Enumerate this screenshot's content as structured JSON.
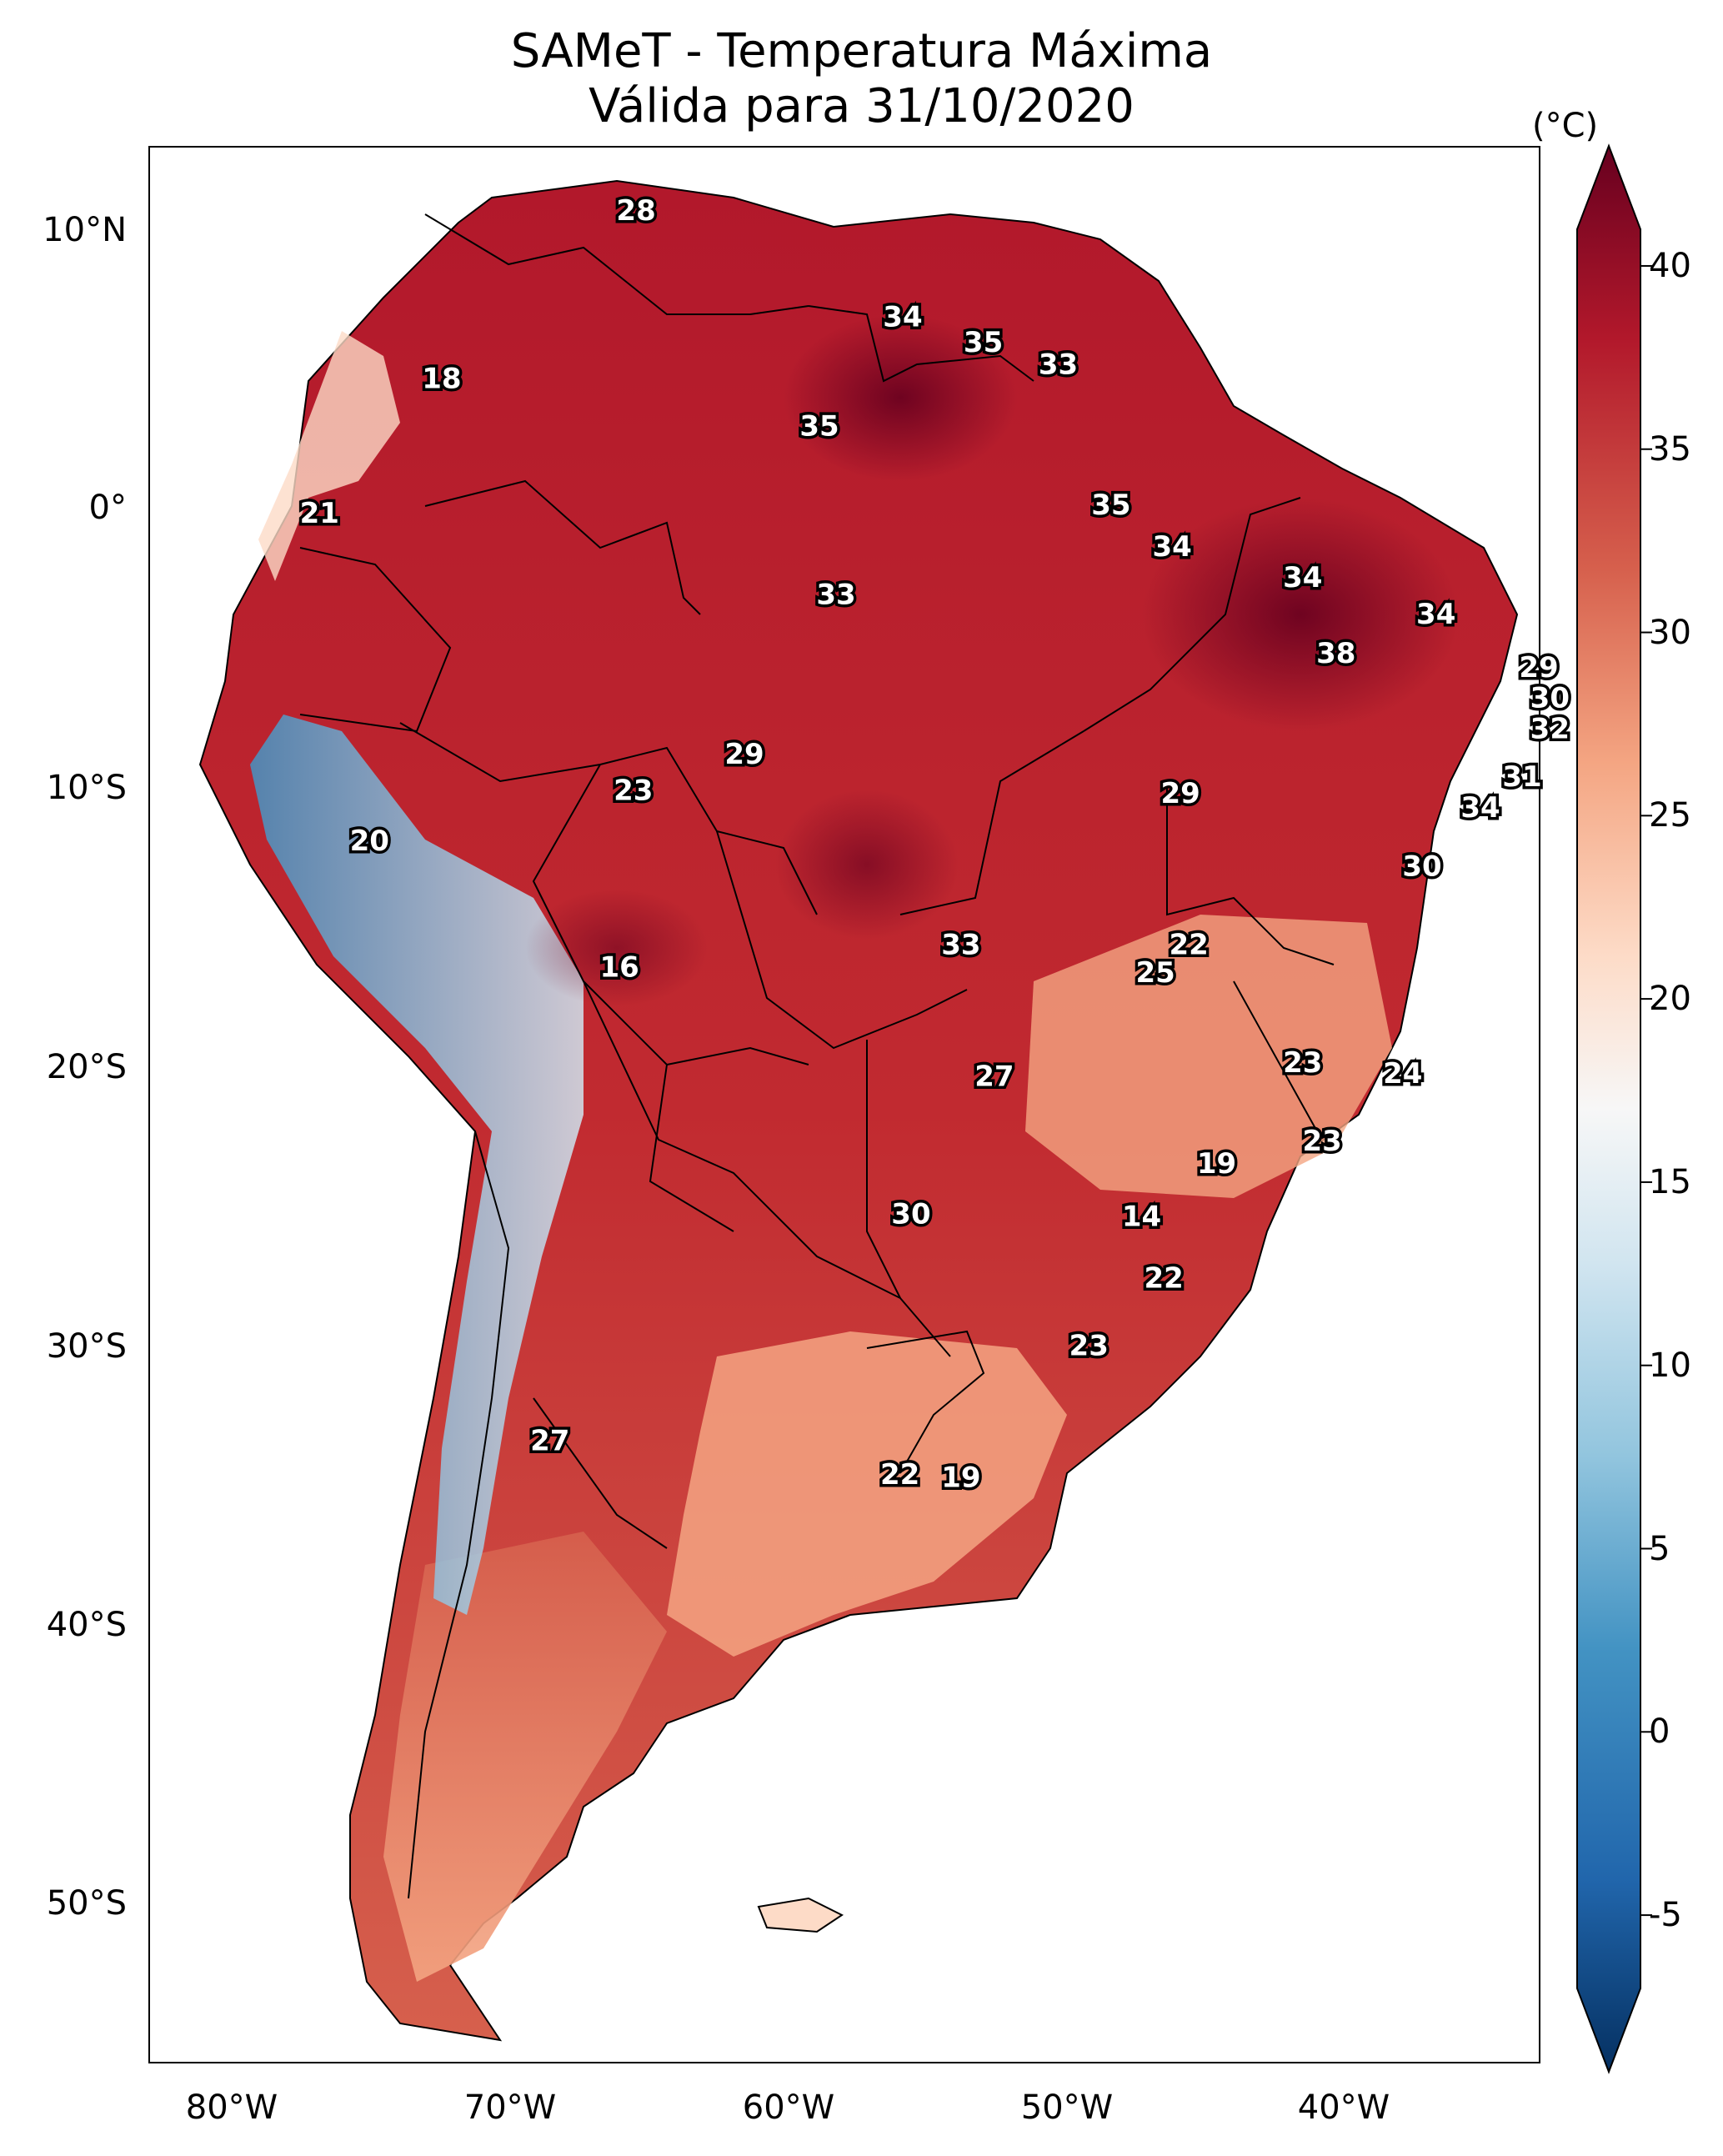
{
  "title": {
    "line1": "SAMeT - Temperatura Máxima",
    "line2": "Válida para 31/10/2020"
  },
  "axes": {
    "lat_labels": [
      "10°N",
      "0°",
      "10°S",
      "20°S",
      "30°S",
      "40°S",
      "50°S"
    ],
    "lon_labels": [
      "80°W",
      "70°W",
      "60°W",
      "50°W",
      "40°W"
    ]
  },
  "colorbar": {
    "unit": "(°C)",
    "ticks": [
      "40",
      "35",
      "30",
      "25",
      "20",
      "15",
      "10",
      "5",
      "0",
      "-5"
    ],
    "min": -7,
    "max": 41,
    "colors": [
      "#053061",
      "#2166ac",
      "#4393c3",
      "#92c5de",
      "#d1e5f0",
      "#f7f7f7",
      "#fddbc7",
      "#f4a582",
      "#d6604d",
      "#b2182b",
      "#67001f"
    ]
  },
  "map_values": [
    {
      "name": "label-1",
      "text": "28",
      "lon": -67.5,
      "lat": 10.5
    },
    {
      "name": "label-2",
      "text": "34",
      "lon": -57.9,
      "lat": 6.7
    },
    {
      "name": "label-3",
      "text": "35",
      "lon": -55.0,
      "lat": 5.8
    },
    {
      "name": "label-4",
      "text": "33",
      "lon": -52.3,
      "lat": 5.0
    },
    {
      "name": "label-5",
      "text": "18",
      "lon": -74.5,
      "lat": 4.5
    },
    {
      "name": "label-6",
      "text": "35",
      "lon": -60.9,
      "lat": 2.8
    },
    {
      "name": "label-7",
      "text": "21",
      "lon": -78.9,
      "lat": -0.3
    },
    {
      "name": "label-8",
      "text": "35",
      "lon": -50.4,
      "lat": 0.0
    },
    {
      "name": "label-9",
      "text": "34",
      "lon": -48.2,
      "lat": -1.5
    },
    {
      "name": "label-10",
      "text": "33",
      "lon": -60.3,
      "lat": -3.2
    },
    {
      "name": "label-11",
      "text": "34",
      "lon": -43.5,
      "lat": -2.6
    },
    {
      "name": "label-12",
      "text": "34",
      "lon": -38.7,
      "lat": -3.9
    },
    {
      "name": "label-13",
      "text": "38",
      "lon": -42.3,
      "lat": -5.3
    },
    {
      "name": "label-14",
      "text": "29",
      "lon": -35.0,
      "lat": -5.8
    },
    {
      "name": "label-15",
      "text": "30",
      "lon": -34.6,
      "lat": -6.9
    },
    {
      "name": "label-16",
      "text": "32",
      "lon": -34.6,
      "lat": -8.0
    },
    {
      "name": "label-17",
      "text": "29",
      "lon": -63.6,
      "lat": -8.9
    },
    {
      "name": "label-18",
      "text": "31",
      "lon": -35.6,
      "lat": -9.7
    },
    {
      "name": "label-19",
      "text": "23",
      "lon": -67.6,
      "lat": -10.2
    },
    {
      "name": "label-20",
      "text": "29",
      "lon": -47.9,
      "lat": -10.3
    },
    {
      "name": "label-21",
      "text": "34",
      "lon": -37.1,
      "lat": -10.8
    },
    {
      "name": "label-22",
      "text": "20",
      "lon": -77.1,
      "lat": -12.0
    },
    {
      "name": "label-23",
      "text": "30",
      "lon": -39.2,
      "lat": -12.9
    },
    {
      "name": "label-24",
      "text": "33",
      "lon": -55.8,
      "lat": -15.7
    },
    {
      "name": "label-25",
      "text": "22",
      "lon": -47.6,
      "lat": -15.7
    },
    {
      "name": "label-26",
      "text": "16",
      "lon": -68.1,
      "lat": -16.5
    },
    {
      "name": "label-27",
      "text": "25",
      "lon": -48.8,
      "lat": -16.7
    },
    {
      "name": "label-28",
      "text": "23",
      "lon": -43.5,
      "lat": -19.9
    },
    {
      "name": "label-29",
      "text": "24",
      "lon": -39.9,
      "lat": -20.3
    },
    {
      "name": "label-30",
      "text": "27",
      "lon": -54.6,
      "lat": -20.4
    },
    {
      "name": "label-31",
      "text": "23",
      "lon": -42.8,
      "lat": -22.7
    },
    {
      "name": "label-32",
      "text": "19",
      "lon": -46.6,
      "lat": -23.5
    },
    {
      "name": "label-33",
      "text": "30",
      "lon": -57.6,
      "lat": -25.3
    },
    {
      "name": "label-34",
      "text": "14",
      "lon": -49.3,
      "lat": -25.4
    },
    {
      "name": "label-35",
      "text": "22",
      "lon": -48.5,
      "lat": -27.6
    },
    {
      "name": "label-36",
      "text": "23",
      "lon": -51.2,
      "lat": -30.0
    },
    {
      "name": "label-37",
      "text": "27",
      "lon": -70.6,
      "lat": -33.4
    },
    {
      "name": "label-38",
      "text": "22",
      "lon": -58.0,
      "lat": -34.6
    },
    {
      "name": "label-39",
      "text": "19",
      "lon": -55.8,
      "lat": -34.7
    }
  ]
}
